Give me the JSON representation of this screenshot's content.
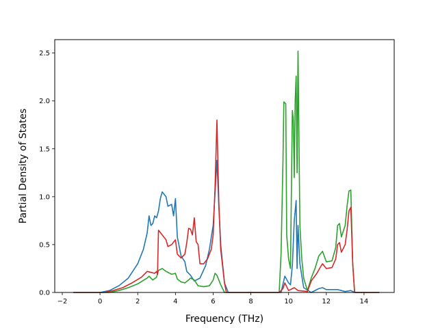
{
  "chart_data": {
    "type": "line",
    "title": "",
    "xlabel": "Frequency (THz)",
    "ylabel": "Partial Density of States",
    "xlim": [
      -2.4,
      15.6
    ],
    "ylim": [
      0,
      2.64
    ],
    "xticks": [
      -2,
      0,
      2,
      4,
      6,
      8,
      10,
      12,
      14
    ],
    "xtick_labels": [
      "−2",
      "0",
      "2",
      "4",
      "6",
      "8",
      "10",
      "12",
      "14"
    ],
    "yticks": [
      0.0,
      0.5,
      1.0,
      1.5,
      2.0,
      2.5
    ],
    "ytick_labels": [
      "0.0",
      "0.5",
      "1.0",
      "1.5",
      "2.0",
      "2.5"
    ],
    "grid": false,
    "legend": false,
    "series": [
      {
        "color": "#1f77b4",
        "points": [
          [
            -1.4,
            0
          ],
          [
            0,
            0
          ],
          [
            0.5,
            0.02
          ],
          [
            1.0,
            0.07
          ],
          [
            1.5,
            0.15
          ],
          [
            2.0,
            0.3
          ],
          [
            2.3,
            0.45
          ],
          [
            2.5,
            0.62
          ],
          [
            2.6,
            0.8
          ],
          [
            2.7,
            0.7
          ],
          [
            2.8,
            0.72
          ],
          [
            2.9,
            0.8
          ],
          [
            3.0,
            0.78
          ],
          [
            3.1,
            0.85
          ],
          [
            3.2,
            0.98
          ],
          [
            3.3,
            1.05
          ],
          [
            3.5,
            1.0
          ],
          [
            3.6,
            0.9
          ],
          [
            3.8,
            0.92
          ],
          [
            3.9,
            0.8
          ],
          [
            4.0,
            0.98
          ],
          [
            4.1,
            0.58
          ],
          [
            4.3,
            0.38
          ],
          [
            4.5,
            0.32
          ],
          [
            4.6,
            0.22
          ],
          [
            4.8,
            0.18
          ],
          [
            5.0,
            0.12
          ],
          [
            5.3,
            0.15
          ],
          [
            5.6,
            0.28
          ],
          [
            5.8,
            0.45
          ],
          [
            6.0,
            0.7
          ],
          [
            6.2,
            1.38
          ],
          [
            6.3,
            0.9
          ],
          [
            6.4,
            0.5
          ],
          [
            6.6,
            0.1
          ],
          [
            6.8,
            0
          ],
          [
            9.6,
            0
          ],
          [
            9.8,
            0.17
          ],
          [
            10.0,
            0.1
          ],
          [
            10.1,
            0.08
          ],
          [
            10.2,
            0.28
          ],
          [
            10.3,
            0.75
          ],
          [
            10.4,
            0.96
          ],
          [
            10.45,
            0.25
          ],
          [
            10.5,
            0.7
          ],
          [
            10.6,
            0.3
          ],
          [
            10.8,
            0.05
          ],
          [
            11.2,
            0
          ],
          [
            11.6,
            0.04
          ],
          [
            11.8,
            0.05
          ],
          [
            12.0,
            0.03
          ],
          [
            12.6,
            0.03
          ],
          [
            12.8,
            0.02
          ],
          [
            13.0,
            0.01
          ],
          [
            13.3,
            0.02
          ],
          [
            13.5,
            0
          ],
          [
            14.8,
            0
          ]
        ]
      },
      {
        "color": "#2ca02c",
        "points": [
          [
            -1.4,
            0
          ],
          [
            0.5,
            0
          ],
          [
            1.0,
            0.02
          ],
          [
            1.5,
            0.05
          ],
          [
            2.0,
            0.09
          ],
          [
            2.5,
            0.15
          ],
          [
            2.6,
            0.17
          ],
          [
            2.8,
            0.13
          ],
          [
            3.0,
            0.16
          ],
          [
            3.1,
            0.23
          ],
          [
            3.3,
            0.25
          ],
          [
            3.5,
            0.22
          ],
          [
            3.8,
            0.19
          ],
          [
            4.0,
            0.2
          ],
          [
            4.1,
            0.14
          ],
          [
            4.3,
            0.11
          ],
          [
            4.5,
            0.1
          ],
          [
            4.7,
            0.13
          ],
          [
            4.8,
            0.15
          ],
          [
            5.0,
            0.13
          ],
          [
            5.2,
            0.07
          ],
          [
            5.5,
            0.06
          ],
          [
            5.8,
            0.07
          ],
          [
            6.0,
            0.13
          ],
          [
            6.1,
            0.2
          ],
          [
            6.2,
            0.18
          ],
          [
            6.4,
            0.08
          ],
          [
            6.6,
            0
          ],
          [
            9.5,
            0
          ],
          [
            9.6,
            0.4
          ],
          [
            9.7,
            1.35
          ],
          [
            9.75,
            1.99
          ],
          [
            9.85,
            1.97
          ],
          [
            9.9,
            0.6
          ],
          [
            10.0,
            0.35
          ],
          [
            10.1,
            0.25
          ],
          [
            10.2,
            1.9
          ],
          [
            10.25,
            1.8
          ],
          [
            10.3,
            1.2
          ],
          [
            10.35,
            2.0
          ],
          [
            10.4,
            2.26
          ],
          [
            10.45,
            1.25
          ],
          [
            10.5,
            2.52
          ],
          [
            10.55,
            1.6
          ],
          [
            10.6,
            0.7
          ],
          [
            10.7,
            0.35
          ],
          [
            10.8,
            0.15
          ],
          [
            11.0,
            0.02
          ],
          [
            11.2,
            0.15
          ],
          [
            11.4,
            0.25
          ],
          [
            11.6,
            0.38
          ],
          [
            11.8,
            0.43
          ],
          [
            12.0,
            0.32
          ],
          [
            12.3,
            0.33
          ],
          [
            12.5,
            0.47
          ],
          [
            12.6,
            0.7
          ],
          [
            12.7,
            0.72
          ],
          [
            12.8,
            0.58
          ],
          [
            13.0,
            0.7
          ],
          [
            13.1,
            0.9
          ],
          [
            13.2,
            1.06
          ],
          [
            13.3,
            1.07
          ],
          [
            13.4,
            0.3
          ],
          [
            13.5,
            0
          ],
          [
            14.8,
            0
          ]
        ]
      },
      {
        "color": "#d62728",
        "points": [
          [
            -1.4,
            0
          ],
          [
            0.2,
            0
          ],
          [
            0.7,
            0.02
          ],
          [
            1.2,
            0.05
          ],
          [
            1.7,
            0.1
          ],
          [
            2.2,
            0.16
          ],
          [
            2.5,
            0.22
          ],
          [
            2.7,
            0.21
          ],
          [
            2.9,
            0.2
          ],
          [
            3.0,
            0.22
          ],
          [
            3.05,
            0.19
          ],
          [
            3.1,
            0.65
          ],
          [
            3.3,
            0.6
          ],
          [
            3.5,
            0.55
          ],
          [
            3.6,
            0.48
          ],
          [
            3.8,
            0.5
          ],
          [
            4.0,
            0.55
          ],
          [
            4.1,
            0.4
          ],
          [
            4.3,
            0.36
          ],
          [
            4.5,
            0.4
          ],
          [
            4.6,
            0.52
          ],
          [
            4.7,
            0.67
          ],
          [
            4.8,
            0.66
          ],
          [
            4.9,
            0.6
          ],
          [
            5.0,
            0.78
          ],
          [
            5.1,
            0.53
          ],
          [
            5.2,
            0.5
          ],
          [
            5.3,
            0.3
          ],
          [
            5.5,
            0.3
          ],
          [
            5.7,
            0.35
          ],
          [
            5.9,
            0.45
          ],
          [
            6.0,
            0.6
          ],
          [
            6.1,
            1.1
          ],
          [
            6.2,
            1.8
          ],
          [
            6.3,
            0.95
          ],
          [
            6.4,
            0.45
          ],
          [
            6.6,
            0.1
          ],
          [
            6.7,
            0
          ],
          [
            9.5,
            0
          ],
          [
            9.7,
            0.04
          ],
          [
            9.8,
            0.1
          ],
          [
            10.0,
            0.02
          ],
          [
            10.3,
            0.05
          ],
          [
            10.5,
            0.02
          ],
          [
            11.0,
            0.01
          ],
          [
            11.2,
            0.12
          ],
          [
            11.5,
            0.2
          ],
          [
            11.7,
            0.27
          ],
          [
            11.8,
            0.3
          ],
          [
            12.0,
            0.25
          ],
          [
            12.3,
            0.26
          ],
          [
            12.5,
            0.35
          ],
          [
            12.6,
            0.5
          ],
          [
            12.7,
            0.52
          ],
          [
            12.8,
            0.42
          ],
          [
            13.0,
            0.5
          ],
          [
            13.1,
            0.65
          ],
          [
            13.2,
            0.85
          ],
          [
            13.3,
            0.89
          ],
          [
            13.4,
            0.3
          ],
          [
            13.5,
            0
          ],
          [
            14.8,
            0
          ]
        ]
      }
    ]
  }
}
